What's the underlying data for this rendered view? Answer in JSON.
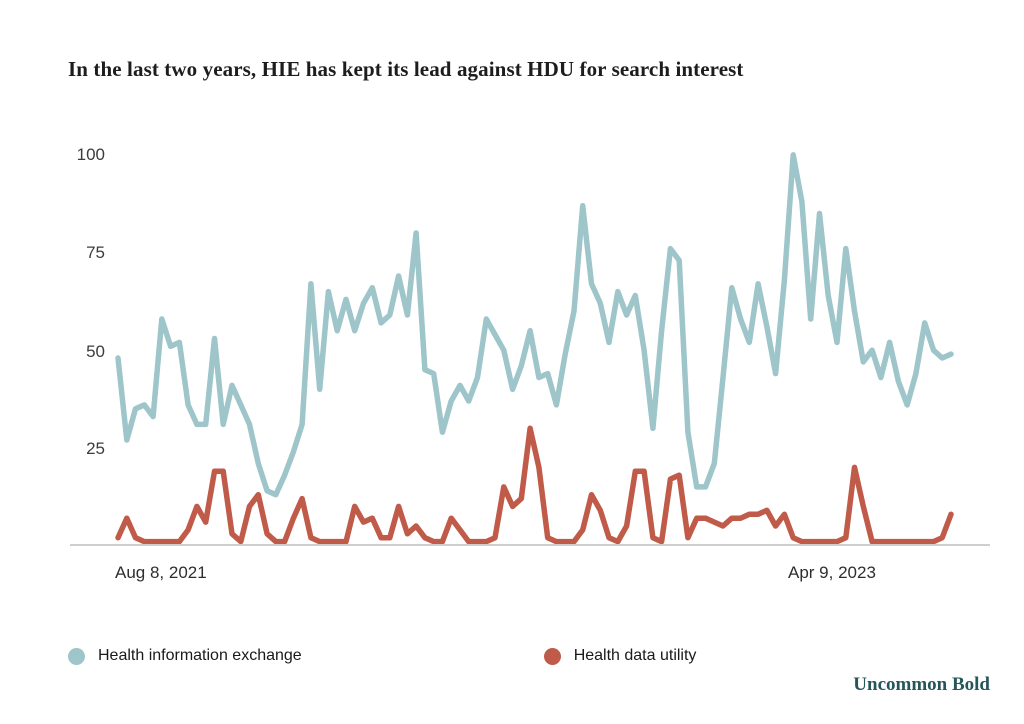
{
  "title": "In the last two years, HIE has kept its lead against HDU for search interest",
  "credit": "Uncommon Bold",
  "axes": {
    "y_ticks": {
      "t100": "100",
      "t75": "75",
      "t50": "50",
      "t25": "25"
    },
    "x_labels": {
      "start": "Aug 8, 2021",
      "end": "Apr 9, 2023"
    }
  },
  "legend": {
    "items": [
      {
        "label": "Health information exchange",
        "color": "#9EC5C9"
      },
      {
        "label": "Health data utility",
        "color": "#C05B49"
      }
    ]
  },
  "chart_data": {
    "type": "line",
    "title": "In the last two years, HIE has kept its lead against HDU for search interest",
    "x_unit": "week",
    "x_start_label": "Aug 8, 2021",
    "x_end_label": "Apr 9, 2023",
    "ylim": [
      0,
      100
    ],
    "y_ticks": [
      25,
      50,
      75,
      100
    ],
    "grid": false,
    "legend_position": "bottom",
    "series": [
      {
        "id": "hie",
        "name": "Health information exchange",
        "color": "#9EC5C9",
        "values": [
          48,
          27,
          35,
          36,
          33,
          58,
          51,
          52,
          36,
          31,
          31,
          53,
          31,
          41,
          36,
          31,
          21,
          14,
          13,
          18,
          24,
          31,
          67,
          40,
          65,
          55,
          63,
          55,
          62,
          66,
          57,
          59,
          69,
          59,
          80,
          45,
          44,
          29,
          37,
          41,
          37,
          43,
          58,
          54,
          50,
          40,
          46,
          55,
          43,
          44,
          36,
          49,
          60,
          87,
          67,
          62,
          52,
          65,
          59,
          64,
          50,
          30,
          55,
          76,
          73,
          29,
          15,
          15,
          21,
          43,
          66,
          58,
          52,
          67,
          56,
          44,
          68,
          100,
          88,
          58,
          85,
          64,
          52,
          76,
          60,
          47,
          50,
          43,
          52,
          42,
          36,
          44,
          57,
          50,
          48,
          49
        ]
      },
      {
        "id": "hdu",
        "name": "Health data utility",
        "color": "#C05B49",
        "values": [
          2,
          7,
          2,
          1,
          1,
          1,
          1,
          1,
          4,
          10,
          6,
          19,
          19,
          3,
          1,
          10,
          13,
          3,
          1,
          1,
          7,
          12,
          2,
          1,
          1,
          1,
          1,
          10,
          6,
          7,
          2,
          2,
          10,
          3,
          5,
          2,
          1,
          1,
          7,
          4,
          1,
          1,
          1,
          2,
          15,
          10,
          12,
          30,
          20,
          2,
          1,
          1,
          1,
          4,
          13,
          9,
          2,
          1,
          5,
          19,
          19,
          2,
          1,
          17,
          18,
          2,
          7,
          7,
          6,
          5,
          7,
          7,
          8,
          8,
          9,
          5,
          8,
          2,
          1,
          1,
          1,
          1,
          1,
          2,
          20,
          10,
          1,
          1,
          1,
          1,
          1,
          1,
          1,
          1,
          2,
          8
        ]
      }
    ]
  }
}
